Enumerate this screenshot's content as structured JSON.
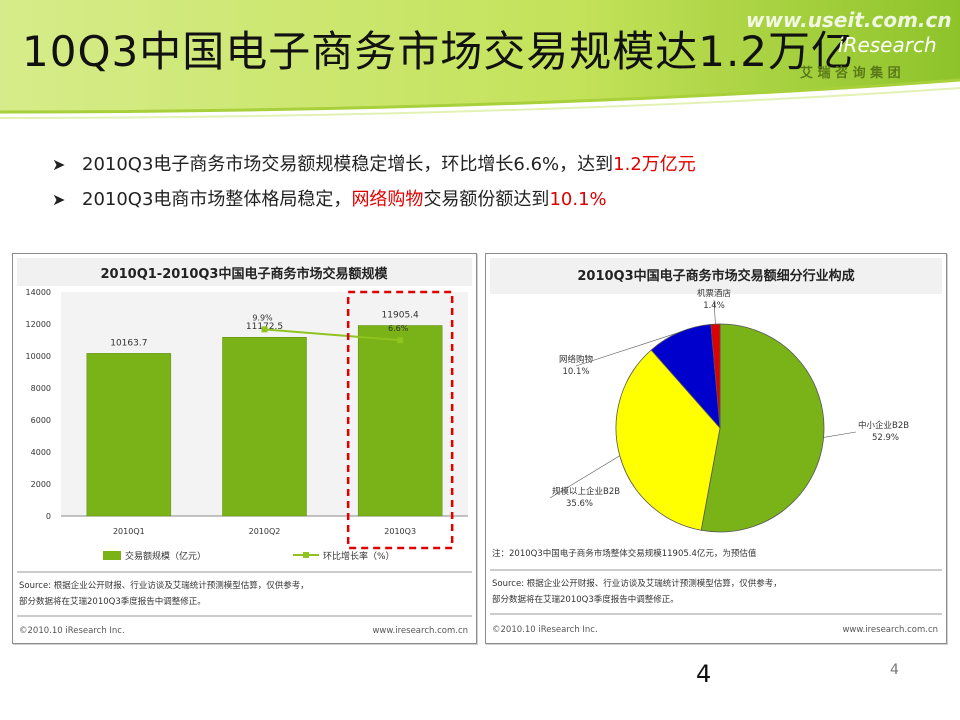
{
  "header": {
    "title": "10Q3中国电子商务市场交易规模达1.2万亿",
    "watermark": "www.useit.com.cn",
    "brand_en": "iResearch",
    "brand_cn": "艾 瑞 咨 询 集 团"
  },
  "bullets": [
    {
      "pre": "2010Q3电子商务市场交易额规模稳定增长，环比增长6.6%，达到",
      "red": "1.2万亿元",
      "post": ""
    },
    {
      "pre": "2010Q3电商市场整体格局稳定，",
      "red": "网络购物",
      "post": "交易额份额达到",
      "red2": "10.1%"
    }
  ],
  "left_chart": {
    "footer_source": "Source: 根据企业公开财报、行业访谈及艾瑞统计预测模型估算，仅供参考，部分数据将在艾瑞2010Q3季度报告中调整修正。",
    "footer_copyright": "©2010.10 iResearch Inc.",
    "footer_url": "www.iresearch.com.cn"
  },
  "right_chart": {
    "note": "注：2010Q3中国电子商务市场整体交易规模11905.4亿元，为预估值",
    "footer_source": "Source: 根据企业公开财报、行业访谈及艾瑞统计预测模型估算，仅供参考，部分数据将在艾瑞2010Q3季度报告中调整修正。",
    "footer_copyright": "©2010.10 iResearch Inc.",
    "footer_url": "www.iresearch.com.cn"
  },
  "page_number_large": "4",
  "page_number_small": "4",
  "colors": {
    "green_bar": "#7ab317",
    "line_green": "#8fc31f",
    "pie_green": "#7ab317",
    "pie_yellow": "#ffff00",
    "pie_blue": "#0000cc",
    "pie_red": "#e00000",
    "highlight_red": "#e00000"
  },
  "chart_data": [
    {
      "type": "bar",
      "title": "2010Q1-2010Q3中国电子商务市场交易额规模",
      "categories": [
        "2010Q1",
        "2010Q2",
        "2010Q3"
      ],
      "series": [
        {
          "name": "交易额规模（亿元）",
          "values": [
            10163.7,
            11172.5,
            11905.4
          ],
          "labels": [
            "10163.7",
            "11172.5",
            "11905.4"
          ]
        },
        {
          "name": "环比增长率（%）",
          "kind": "line",
          "values": [
            null,
            9.9,
            6.6
          ],
          "labels": [
            "",
            "9.9%",
            "6.6%"
          ]
        }
      ],
      "yticks": [
        "14000",
        "12000",
        "10000",
        "8000",
        "6000",
        "4000",
        "2000",
        "0"
      ],
      "ylim": [
        0,
        14000
      ],
      "highlight_category": "2010Q3"
    },
    {
      "type": "pie",
      "title": "2010Q3中国电子商务市场交易额细分行业构成",
      "slices": [
        {
          "name": "中小企业B2B",
          "value": 52.9,
          "label": "52.9%"
        },
        {
          "name": "规模以上企业B2B",
          "value": 35.6,
          "label": "35.6%"
        },
        {
          "name": "网络购物",
          "value": 10.1,
          "label": "10.1%"
        },
        {
          "name": "机票酒店",
          "value": 1.4,
          "label": "1.4%"
        }
      ]
    }
  ]
}
